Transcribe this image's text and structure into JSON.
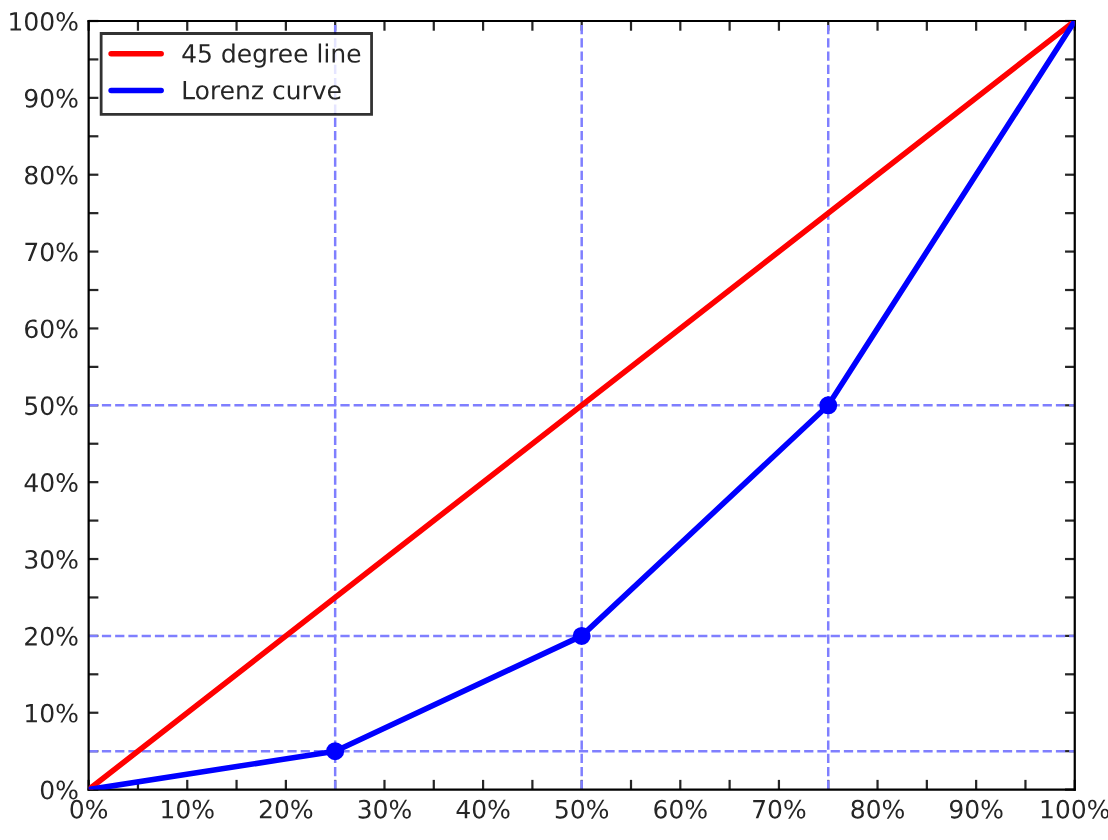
{
  "chart_data": {
    "type": "line",
    "series": [
      {
        "name": "45 degree line",
        "color": "#ff0000",
        "x": [
          0,
          100
        ],
        "values": [
          0,
          100
        ],
        "marker": "none"
      },
      {
        "name": "Lorenz curve",
        "color": "#0000ff",
        "x": [
          0,
          25,
          50,
          75,
          100
        ],
        "values": [
          0,
          5,
          20,
          50,
          100
        ],
        "marker": "none"
      },
      {
        "type": "scatter",
        "color": "#0000ff",
        "x": [
          25,
          50,
          75
        ],
        "values": [
          5,
          20,
          50
        ],
        "marker": "circle"
      }
    ],
    "xlim": [
      0,
      100
    ],
    "ylim": [
      0,
      100
    ],
    "xticks": [
      {
        "value": 0,
        "label": "0%"
      },
      {
        "value": 5,
        "label": null
      },
      {
        "value": 10,
        "label": "10%"
      },
      {
        "value": 15,
        "label": null
      },
      {
        "value": 20,
        "label": "20%"
      },
      {
        "value": 25,
        "label": null
      },
      {
        "value": 30,
        "label": "30%"
      },
      {
        "value": 35,
        "label": null
      },
      {
        "value": 40,
        "label": "40%"
      },
      {
        "value": 45,
        "label": null
      },
      {
        "value": 50,
        "label": "50%"
      },
      {
        "value": 55,
        "label": null
      },
      {
        "value": 60,
        "label": "60%"
      },
      {
        "value": 65,
        "label": null
      },
      {
        "value": 70,
        "label": "70%"
      },
      {
        "value": 75,
        "label": null
      },
      {
        "value": 80,
        "label": "80%"
      },
      {
        "value": 85,
        "label": null
      },
      {
        "value": 90,
        "label": "90%"
      },
      {
        "value": 95,
        "label": null
      },
      {
        "value": 100,
        "label": "100%"
      }
    ],
    "yticks": [
      {
        "value": 0,
        "label": "0%"
      },
      {
        "value": 5,
        "label": null
      },
      {
        "value": 10,
        "label": "10%"
      },
      {
        "value": 15,
        "label": null
      },
      {
        "value": 20,
        "label": "20%"
      },
      {
        "value": 25,
        "label": null
      },
      {
        "value": 30,
        "label": "30%"
      },
      {
        "value": 35,
        "label": null
      },
      {
        "value": 40,
        "label": "40%"
      },
      {
        "value": 45,
        "label": null
      },
      {
        "value": 50,
        "label": "50%"
      },
      {
        "value": 55,
        "label": null
      },
      {
        "value": 60,
        "label": "60%"
      },
      {
        "value": 65,
        "label": null
      },
      {
        "value": 70,
        "label": "70%"
      },
      {
        "value": 75,
        "label": null
      },
      {
        "value": 80,
        "label": "80%"
      },
      {
        "value": 85,
        "label": null
      },
      {
        "value": 90,
        "label": "90%"
      },
      {
        "value": 95,
        "label": null
      },
      {
        "value": 100,
        "label": "100%"
      }
    ],
    "ref_lines": [
      {
        "axis": "x",
        "value": 25,
        "color": "#7f7fff",
        "line_style": "dashed"
      },
      {
        "axis": "x",
        "value": 50,
        "color": "#7f7fff",
        "line_style": "dashed"
      },
      {
        "axis": "x",
        "value": 75,
        "color": "#7f7fff",
        "line_style": "dashed"
      },
      {
        "axis": "y",
        "value": 5,
        "color": "#7f7fff",
        "line_style": "dashed"
      },
      {
        "axis": "y",
        "value": 20,
        "color": "#7f7fff",
        "line_style": "dashed"
      },
      {
        "axis": "y",
        "value": 50,
        "color": "#7f7fff",
        "line_style": "dashed"
      }
    ],
    "legend": "top left",
    "grid": false
  }
}
